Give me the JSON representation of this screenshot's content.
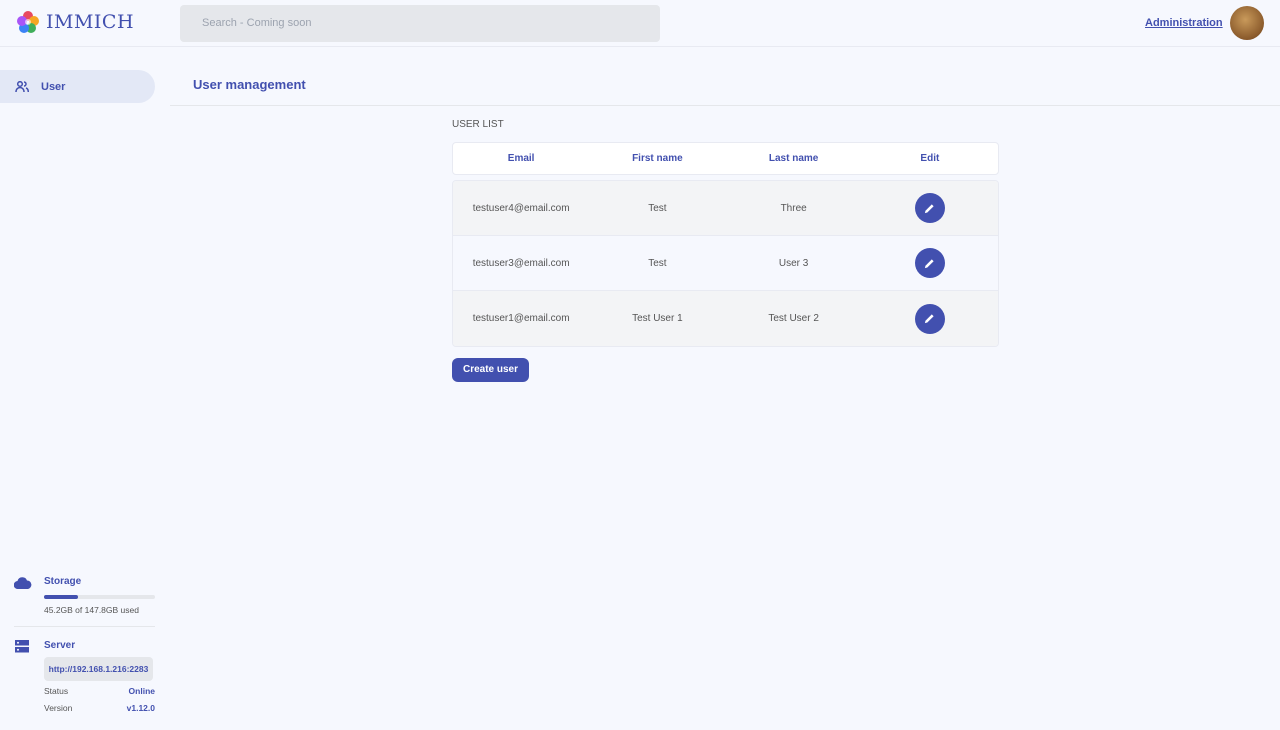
{
  "header": {
    "app_name": "IMMICH",
    "search_placeholder": "Search - Coming soon",
    "admin_link": "Administration"
  },
  "sidebar": {
    "items": [
      {
        "label": "User",
        "icon": "users-icon",
        "active": true
      }
    ]
  },
  "main": {
    "title": "User management",
    "section_label": "USER LIST",
    "columns": [
      "Email",
      "First name",
      "Last name",
      "Edit"
    ],
    "rows": [
      {
        "email": "testuser4@email.com",
        "first": "Test",
        "last": "Three"
      },
      {
        "email": "testuser3@email.com",
        "first": "Test",
        "last": "User 3"
      },
      {
        "email": "testuser1@email.com",
        "first": "Test User 1",
        "last": "Test User 2"
      }
    ],
    "create_label": "Create user"
  },
  "storage": {
    "title": "Storage",
    "usage": "45.2GB of 147.8GB used",
    "used_fraction": 0.306
  },
  "server": {
    "title": "Server",
    "url": "http://192.168.1.216:2283",
    "status_label": "Status",
    "status": "Online",
    "version_label": "Version",
    "version": "v1.12.0"
  },
  "colors": {
    "accent": "#4250af",
    "background": "#f6f8fe"
  }
}
